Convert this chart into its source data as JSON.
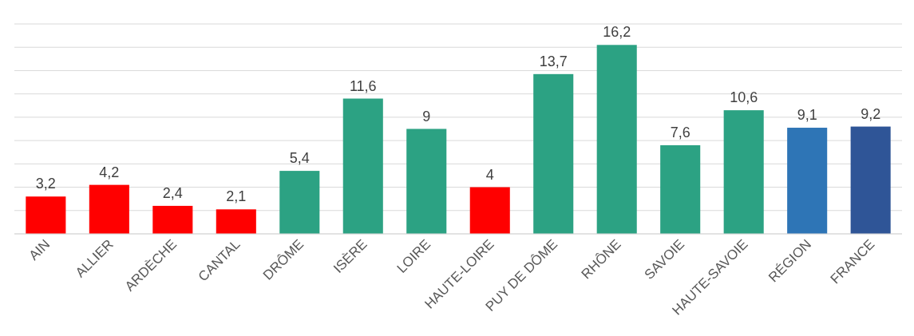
{
  "chart_data": {
    "type": "bar",
    "categories": [
      "AIN",
      "ALLIER",
      "ARDÈCHE",
      "CANTAL",
      "DRÔME",
      "ISÈRE",
      "LOIRE",
      "HAUTE-LOIRE",
      "PUY DE DÔME",
      "RHÔNE",
      "SAVOIE",
      "HAUTE-SAVOIE",
      "RÉGION",
      "FRANCE"
    ],
    "values": [
      3.2,
      4.2,
      2.4,
      2.1,
      5.4,
      11.6,
      9,
      4,
      13.7,
      16.2,
      7.6,
      10.6,
      9.1,
      9.2
    ],
    "colors": [
      "#ff0000",
      "#ff0000",
      "#ff0000",
      "#ff0000",
      "#2ca283",
      "#2ca283",
      "#2ca283",
      "#ff0000",
      "#2ca283",
      "#2ca283",
      "#2ca283",
      "#2ca283",
      "#2e75b6",
      "#2f5597"
    ],
    "value_labels": [
      "3,2",
      "4,2",
      "2,4",
      "2,1",
      "5,4",
      "11,6",
      "9",
      "4",
      "13,7",
      "16,2",
      "7,6",
      "10,6",
      "9,1",
      "9,2"
    ],
    "ylim": [
      0,
      18
    ],
    "yticks": [
      {
        "value": 0,
        "label": null
      },
      {
        "value": 2,
        "label": null
      },
      {
        "value": 4,
        "label": null
      },
      {
        "value": 6,
        "label": null
      },
      {
        "value": 8,
        "label": null
      },
      {
        "value": 10,
        "label": null
      },
      {
        "value": 12,
        "label": null
      },
      {
        "value": 14,
        "label": null
      },
      {
        "value": 16,
        "label": null
      },
      {
        "value": 18,
        "label": null
      }
    ],
    "grid": "y",
    "tick_labels": "x"
  }
}
